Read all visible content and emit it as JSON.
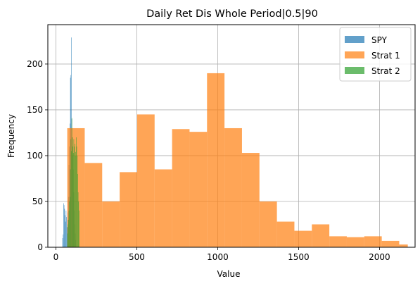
{
  "chart_data": {
    "type": "histogram",
    "title": "Daily Ret Dis Whole Period|0.5|90",
    "xlabel": "Value",
    "ylabel": "Frequency",
    "xlim": [
      -50,
      2220
    ],
    "ylim": [
      0,
      243
    ],
    "xticks": [
      0,
      500,
      1000,
      1500,
      2000
    ],
    "yticks": [
      0,
      50,
      100,
      150,
      200
    ],
    "grid": true,
    "legend_position": "top-right",
    "series": [
      {
        "name": "SPY",
        "color": "#1f77b4",
        "alpha": 0.7,
        "bins": [
          {
            "x0": 40,
            "x1": 43,
            "count": 10
          },
          {
            "x0": 43,
            "x1": 46,
            "count": 14
          },
          {
            "x0": 46,
            "x1": 49,
            "count": 48
          },
          {
            "x0": 49,
            "x1": 52,
            "count": 46
          },
          {
            "x0": 52,
            "x1": 55,
            "count": 42
          },
          {
            "x0": 55,
            "x1": 58,
            "count": 35
          },
          {
            "x0": 58,
            "x1": 61,
            "count": 28
          },
          {
            "x0": 61,
            "x1": 64,
            "count": 40
          },
          {
            "x0": 64,
            "x1": 67,
            "count": 33
          },
          {
            "x0": 67,
            "x1": 70,
            "count": 22
          },
          {
            "x0": 70,
            "x1": 73,
            "count": 30
          },
          {
            "x0": 73,
            "x1": 76,
            "count": 38
          },
          {
            "x0": 76,
            "x1": 79,
            "count": 55
          },
          {
            "x0": 79,
            "x1": 82,
            "count": 90
          },
          {
            "x0": 82,
            "x1": 85,
            "count": 110
          },
          {
            "x0": 85,
            "x1": 88,
            "count": 135
          },
          {
            "x0": 88,
            "x1": 91,
            "count": 185
          },
          {
            "x0": 91,
            "x1": 94,
            "count": 188
          },
          {
            "x0": 94,
            "x1": 97,
            "count": 229
          },
          {
            "x0": 97,
            "x1": 100,
            "count": 140
          },
          {
            "x0": 100,
            "x1": 103,
            "count": 120
          },
          {
            "x0": 103,
            "x1": 106,
            "count": 100
          },
          {
            "x0": 106,
            "x1": 109,
            "count": 85
          },
          {
            "x0": 109,
            "x1": 112,
            "count": 60
          },
          {
            "x0": 112,
            "x1": 115,
            "count": 40
          },
          {
            "x0": 115,
            "x1": 118,
            "count": 25
          },
          {
            "x0": 118,
            "x1": 121,
            "count": 15
          },
          {
            "x0": 121,
            "x1": 124,
            "count": 8
          }
        ]
      },
      {
        "name": "Strat 1",
        "color": "#ff7f0e",
        "alpha": 0.7,
        "bins": [
          {
            "x0": 70,
            "x1": 178,
            "count": 130
          },
          {
            "x0": 178,
            "x1": 286,
            "count": 92
          },
          {
            "x0": 286,
            "x1": 394,
            "count": 50
          },
          {
            "x0": 394,
            "x1": 502,
            "count": 82
          },
          {
            "x0": 502,
            "x1": 610,
            "count": 145
          },
          {
            "x0": 610,
            "x1": 718,
            "count": 85
          },
          {
            "x0": 718,
            "x1": 826,
            "count": 129
          },
          {
            "x0": 826,
            "x1": 934,
            "count": 126
          },
          {
            "x0": 934,
            "x1": 1042,
            "count": 190
          },
          {
            "x0": 1042,
            "x1": 1150,
            "count": 130
          },
          {
            "x0": 1150,
            "x1": 1258,
            "count": 103
          },
          {
            "x0": 1258,
            "x1": 1366,
            "count": 50
          },
          {
            "x0": 1366,
            "x1": 1474,
            "count": 28
          },
          {
            "x0": 1474,
            "x1": 1582,
            "count": 18
          },
          {
            "x0": 1582,
            "x1": 1690,
            "count": 25
          },
          {
            "x0": 1690,
            "x1": 1798,
            "count": 12
          },
          {
            "x0": 1798,
            "x1": 1906,
            "count": 11
          },
          {
            "x0": 1906,
            "x1": 2014,
            "count": 12
          },
          {
            "x0": 2014,
            "x1": 2122,
            "count": 7
          },
          {
            "x0": 2122,
            "x1": 2175,
            "count": 3
          }
        ]
      },
      {
        "name": "Strat 2",
        "color": "#2ca02c",
        "alpha": 0.7,
        "bins": [
          {
            "x0": 70,
            "x1": 73,
            "count": 15
          },
          {
            "x0": 73,
            "x1": 76,
            "count": 25
          },
          {
            "x0": 76,
            "x1": 79,
            "count": 30
          },
          {
            "x0": 79,
            "x1": 82,
            "count": 40
          },
          {
            "x0": 82,
            "x1": 85,
            "count": 50
          },
          {
            "x0": 85,
            "x1": 88,
            "count": 55
          },
          {
            "x0": 88,
            "x1": 91,
            "count": 85
          },
          {
            "x0": 91,
            "x1": 94,
            "count": 118
          },
          {
            "x0": 94,
            "x1": 97,
            "count": 105
          },
          {
            "x0": 97,
            "x1": 100,
            "count": 141
          },
          {
            "x0": 100,
            "x1": 103,
            "count": 120
          },
          {
            "x0": 103,
            "x1": 106,
            "count": 110
          },
          {
            "x0": 106,
            "x1": 109,
            "count": 103
          },
          {
            "x0": 109,
            "x1": 112,
            "count": 118
          },
          {
            "x0": 112,
            "x1": 115,
            "count": 110
          },
          {
            "x0": 115,
            "x1": 118,
            "count": 113
          },
          {
            "x0": 118,
            "x1": 121,
            "count": 100
          },
          {
            "x0": 121,
            "x1": 124,
            "count": 104
          },
          {
            "x0": 124,
            "x1": 127,
            "count": 120
          },
          {
            "x0": 127,
            "x1": 130,
            "count": 110
          },
          {
            "x0": 130,
            "x1": 133,
            "count": 100
          },
          {
            "x0": 133,
            "x1": 136,
            "count": 80
          },
          {
            "x0": 136,
            "x1": 139,
            "count": 60
          },
          {
            "x0": 139,
            "x1": 142,
            "count": 50
          },
          {
            "x0": 142,
            "x1": 145,
            "count": 40
          }
        ]
      }
    ]
  }
}
